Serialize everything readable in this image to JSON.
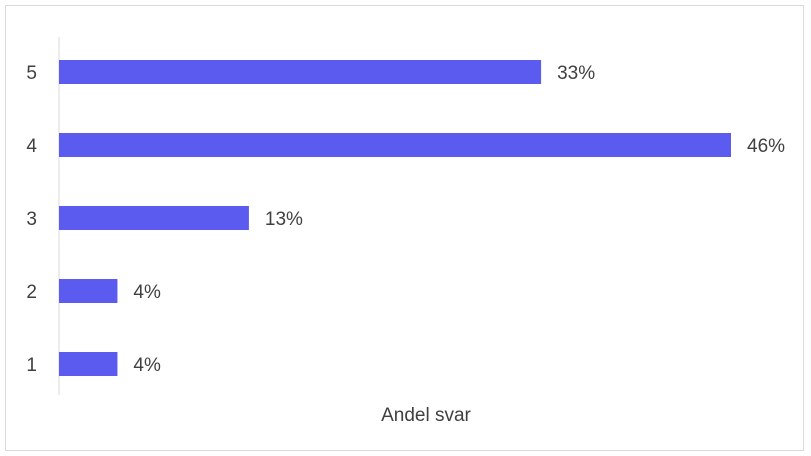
{
  "chart_data": {
    "type": "bar",
    "orientation": "horizontal",
    "categories": [
      "5",
      "4",
      "3",
      "2",
      "1"
    ],
    "values": [
      33,
      46,
      13,
      4,
      4
    ],
    "value_labels": [
      "33%",
      "46%",
      "13%",
      "4%",
      "4%"
    ],
    "title": "",
    "xlabel": "Andel svar",
    "ylabel": "",
    "xlim": [
      0,
      46
    ],
    "grid": false,
    "bar_color": "#5b5bef"
  }
}
